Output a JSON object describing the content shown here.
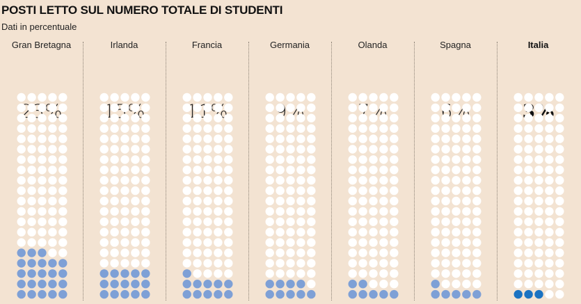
{
  "title": "POSTI LETTO SUL NUMERO TOTALE DI STUDENTI",
  "subtitle": "Dati in percentuale",
  "colors": {
    "empty": "#ffffff",
    "filled": "#7ea0d6",
    "highlight": "#1b73c2"
  },
  "chart_data": {
    "type": "waffle",
    "title": "POSTI LETTO SUL NUMERO TOTALE DI STUDENTI",
    "subtitle": "Dati in percentuale",
    "grid": {
      "rows": 20,
      "cols": 5,
      "total": 100
    },
    "categories": [
      "Gran Bretagna",
      "Irlanda",
      "Francia",
      "Germania",
      "Olanda",
      "Spagna",
      "Italia"
    ],
    "values": [
      23,
      15,
      11,
      9,
      7,
      6,
      3
    ],
    "labels": [
      "23%",
      "15%",
      "11%",
      "9%",
      "7%",
      "6%",
      "3%"
    ],
    "highlight": "Italia"
  }
}
